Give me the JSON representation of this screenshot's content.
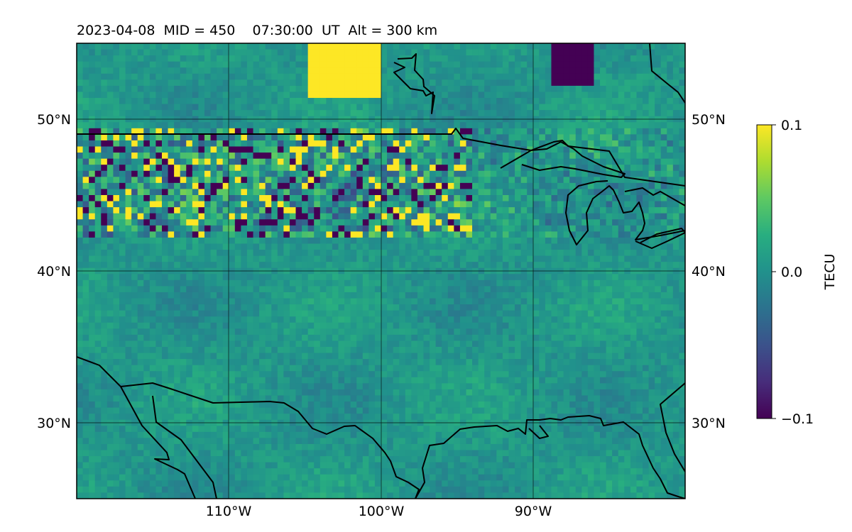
{
  "title": "2023-04-08  MID = 450    07:30:00  UT  Alt = 300 km",
  "chart_data": {
    "type": "heatmap",
    "projection": "plate carree",
    "extent": {
      "lon": [
        -120,
        -80
      ],
      "lat": [
        25,
        55
      ]
    },
    "lat_ticks": [
      {
        "value": 50,
        "label": "50°N"
      },
      {
        "value": 40,
        "label": "40°N"
      },
      {
        "value": 30,
        "label": "30°N"
      }
    ],
    "lon_ticks": [
      {
        "value": -110,
        "label": "110°W"
      },
      {
        "value": -100,
        "label": "100°W"
      },
      {
        "value": -90,
        "label": "90°W"
      }
    ],
    "grid": true,
    "colormap": "viridis",
    "colorbar": {
      "label": "TECU",
      "range": [
        -0.1,
        0.1
      ],
      "ticks": [
        {
          "value": 0.1,
          "label": "0.1"
        },
        {
          "value": 0.0,
          "label": "0.0"
        },
        {
          "value": -0.1,
          "label": "−0.1"
        }
      ],
      "position": "right"
    },
    "field_regions": [
      {
        "region": "northern band 42–49°N, 118–95°W",
        "pattern": "strong speckled noise",
        "min": -0.1,
        "max": 0.1
      },
      {
        "region": "southern and central area",
        "pattern": "smooth",
        "min": -0.03,
        "max": 0.04
      },
      {
        "region": "near 54°N, 103°W",
        "pattern": "positive blob",
        "value": 0.1
      },
      {
        "region": "near 54°N, 87°W",
        "pattern": "negative blob",
        "value": -0.1
      }
    ],
    "coastlines": true,
    "country_borders": true
  }
}
